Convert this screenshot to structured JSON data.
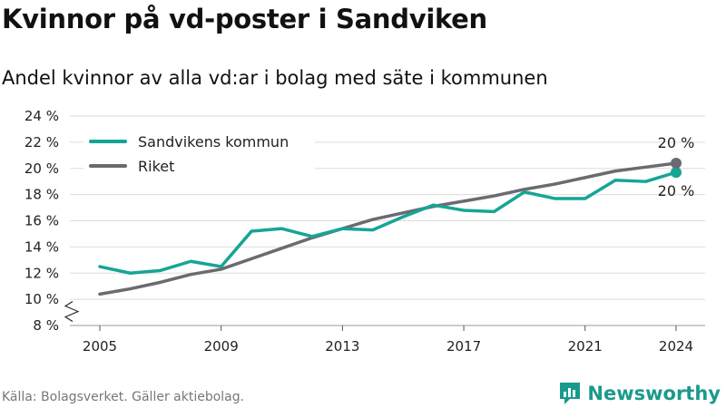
{
  "header": {
    "title": "Kvinnor på vd-poster i Sandviken",
    "subtitle": "Andel kvinnor av alla vd:ar i bolag med säte i kommunen"
  },
  "footer": {
    "source": "Källa: Bolagsverket. Gäller aktiebolag.",
    "brand": "Newsworthy"
  },
  "colors": {
    "sandviken": "#16a595",
    "riket": "#6b6a70",
    "grid": "#dddddd",
    "brand": "#1a9a8c"
  },
  "chart_data": {
    "type": "line",
    "title": "Kvinnor på vd-poster i Sandviken",
    "subtitle": "Andel kvinnor av alla vd:ar i bolag med säte i kommunen",
    "xlabel": "",
    "ylabel": "",
    "x": [
      2005,
      2006,
      2007,
      2008,
      2009,
      2010,
      2011,
      2012,
      2013,
      2014,
      2015,
      2016,
      2017,
      2018,
      2019,
      2020,
      2021,
      2022,
      2023,
      2024
    ],
    "x_ticks": [
      "2005",
      "2009",
      "2013",
      "2017",
      "2021",
      "2024"
    ],
    "y_ticks": [
      "8 %",
      "10 %",
      "12 %",
      "14 %",
      "16 %",
      "18 %",
      "20 %",
      "22 %",
      "24 %"
    ],
    "ylim": [
      8,
      24
    ],
    "y_axis_break": true,
    "grid": true,
    "legend_position": "top-left",
    "series": [
      {
        "name": "Sandvikens kommun",
        "color": "#16a595",
        "end_label": "20 %",
        "values": [
          12.5,
          12.0,
          12.2,
          12.9,
          12.5,
          15.2,
          15.4,
          14.8,
          15.4,
          15.3,
          16.3,
          17.2,
          16.8,
          16.7,
          18.2,
          17.7,
          17.7,
          19.1,
          19.0,
          19.7
        ]
      },
      {
        "name": "Riket",
        "color": "#6b6a70",
        "end_label": "20 %",
        "values": [
          10.4,
          10.8,
          11.3,
          11.9,
          12.3,
          13.1,
          13.9,
          14.7,
          15.4,
          16.1,
          16.6,
          17.1,
          17.5,
          17.9,
          18.4,
          18.8,
          19.3,
          19.8,
          20.1,
          20.4
        ]
      }
    ]
  }
}
